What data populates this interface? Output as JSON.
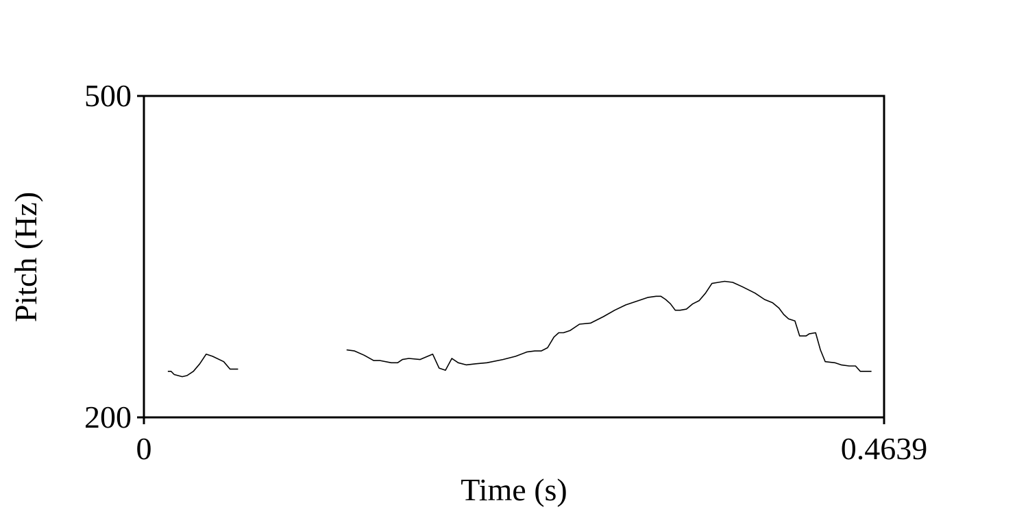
{
  "chart_data": {
    "type": "line",
    "title": "",
    "xlabel": "Time (s)",
    "ylabel": "Pitch (Hz)",
    "xlim": [
      0,
      0.4639
    ],
    "ylim": [
      200,
      500
    ],
    "x_ticks": [
      "0",
      "0.4639"
    ],
    "y_ticks": [
      "500",
      "200"
    ],
    "grid": false,
    "line_color": "#000000",
    "series": [
      {
        "segments": [
          [
            [
              0.015,
              243
            ],
            [
              0.017,
              243
            ],
            [
              0.019,
              240
            ],
            [
              0.024,
              238
            ],
            [
              0.027,
              239
            ],
            [
              0.031,
              243
            ],
            [
              0.035,
              250
            ],
            [
              0.039,
              259
            ],
            [
              0.043,
              257
            ],
            [
              0.05,
              252
            ],
            [
              0.054,
              245
            ],
            [
              0.059,
              245
            ]
          ],
          [
            [
              0.127,
              263
            ],
            [
              0.132,
              262
            ],
            [
              0.138,
              258
            ],
            [
              0.144,
              253
            ],
            [
              0.148,
              253
            ],
            [
              0.155,
              251
            ],
            [
              0.159,
              251
            ],
            [
              0.162,
              254
            ],
            [
              0.166,
              255
            ],
            [
              0.173,
              254
            ],
            [
              0.181,
              259
            ],
            [
              0.185,
              246
            ],
            [
              0.189,
              244
            ],
            [
              0.193,
              255
            ],
            [
              0.197,
              251
            ],
            [
              0.202,
              249
            ],
            [
              0.208,
              250
            ],
            [
              0.215,
              251
            ],
            [
              0.225,
              254
            ],
            [
              0.233,
              257
            ],
            [
              0.24,
              261
            ],
            [
              0.245,
              262
            ],
            [
              0.249,
              262
            ],
            [
              0.253,
              265
            ],
            [
              0.257,
              275
            ],
            [
              0.26,
              279
            ],
            [
              0.263,
              279
            ],
            [
              0.267,
              281
            ],
            [
              0.273,
              287
            ],
            [
              0.28,
              288
            ],
            [
              0.288,
              294
            ],
            [
              0.295,
              300
            ],
            [
              0.302,
              305
            ],
            [
              0.31,
              309
            ],
            [
              0.316,
              312
            ],
            [
              0.321,
              313
            ],
            [
              0.324,
              313
            ],
            [
              0.327,
              310
            ],
            [
              0.33,
              306
            ],
            [
              0.333,
              300
            ],
            [
              0.336,
              300
            ],
            [
              0.34,
              301
            ],
            [
              0.344,
              306
            ],
            [
              0.348,
              309
            ],
            [
              0.352,
              316
            ],
            [
              0.356,
              325
            ],
            [
              0.36,
              326
            ],
            [
              0.364,
              327
            ],
            [
              0.369,
              326
            ],
            [
              0.375,
              322
            ],
            [
              0.383,
              316
            ],
            [
              0.389,
              310
            ],
            [
              0.394,
              307
            ],
            [
              0.398,
              302
            ],
            [
              0.401,
              296
            ],
            [
              0.404,
              292
            ],
            [
              0.408,
              290
            ],
            [
              0.411,
              276
            ],
            [
              0.415,
              276
            ],
            [
              0.417,
              278
            ],
            [
              0.421,
              279
            ],
            [
              0.424,
              263
            ],
            [
              0.427,
              252
            ],
            [
              0.433,
              251
            ],
            [
              0.437,
              249
            ],
            [
              0.442,
              248
            ],
            [
              0.446,
              248
            ],
            [
              0.449,
              243
            ],
            [
              0.451,
              243
            ],
            [
              0.456,
              243
            ]
          ]
        ]
      }
    ]
  }
}
